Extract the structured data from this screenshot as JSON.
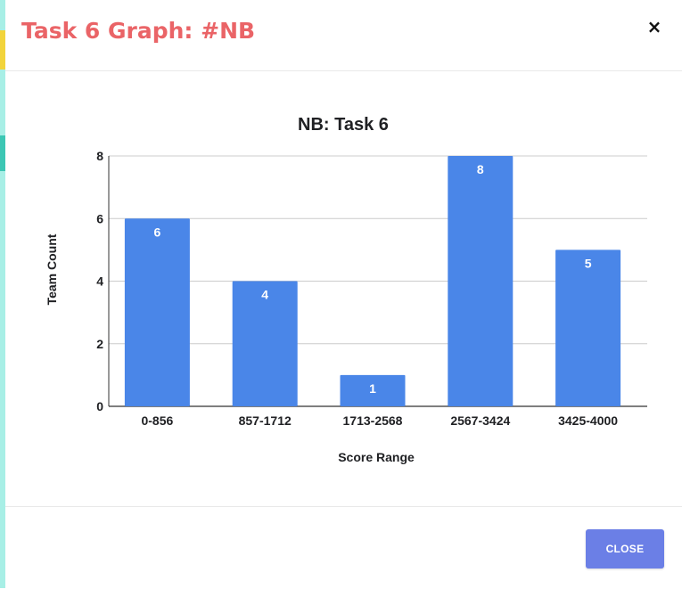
{
  "modal": {
    "title": "Task 6 Graph: #NB",
    "close_icon": "×",
    "close_button_label": "CLOSE"
  },
  "colors": {
    "title": "#ea6467",
    "bar": "#4a86e8",
    "close_button": "#6b7fe6"
  },
  "chart_data": {
    "type": "bar",
    "title": "NB: Task 6",
    "xlabel": "Score Range",
    "ylabel": "Team Count",
    "categories": [
      "0-856",
      "857-1712",
      "1713-2568",
      "2567-3424",
      "3425-4000"
    ],
    "values": [
      6,
      4,
      1,
      8,
      5
    ],
    "ylim": [
      0,
      8
    ],
    "yticks": [
      0,
      2,
      4,
      6,
      8
    ],
    "grid": true,
    "data_labels": true,
    "bar_color": "#4a86e8"
  }
}
